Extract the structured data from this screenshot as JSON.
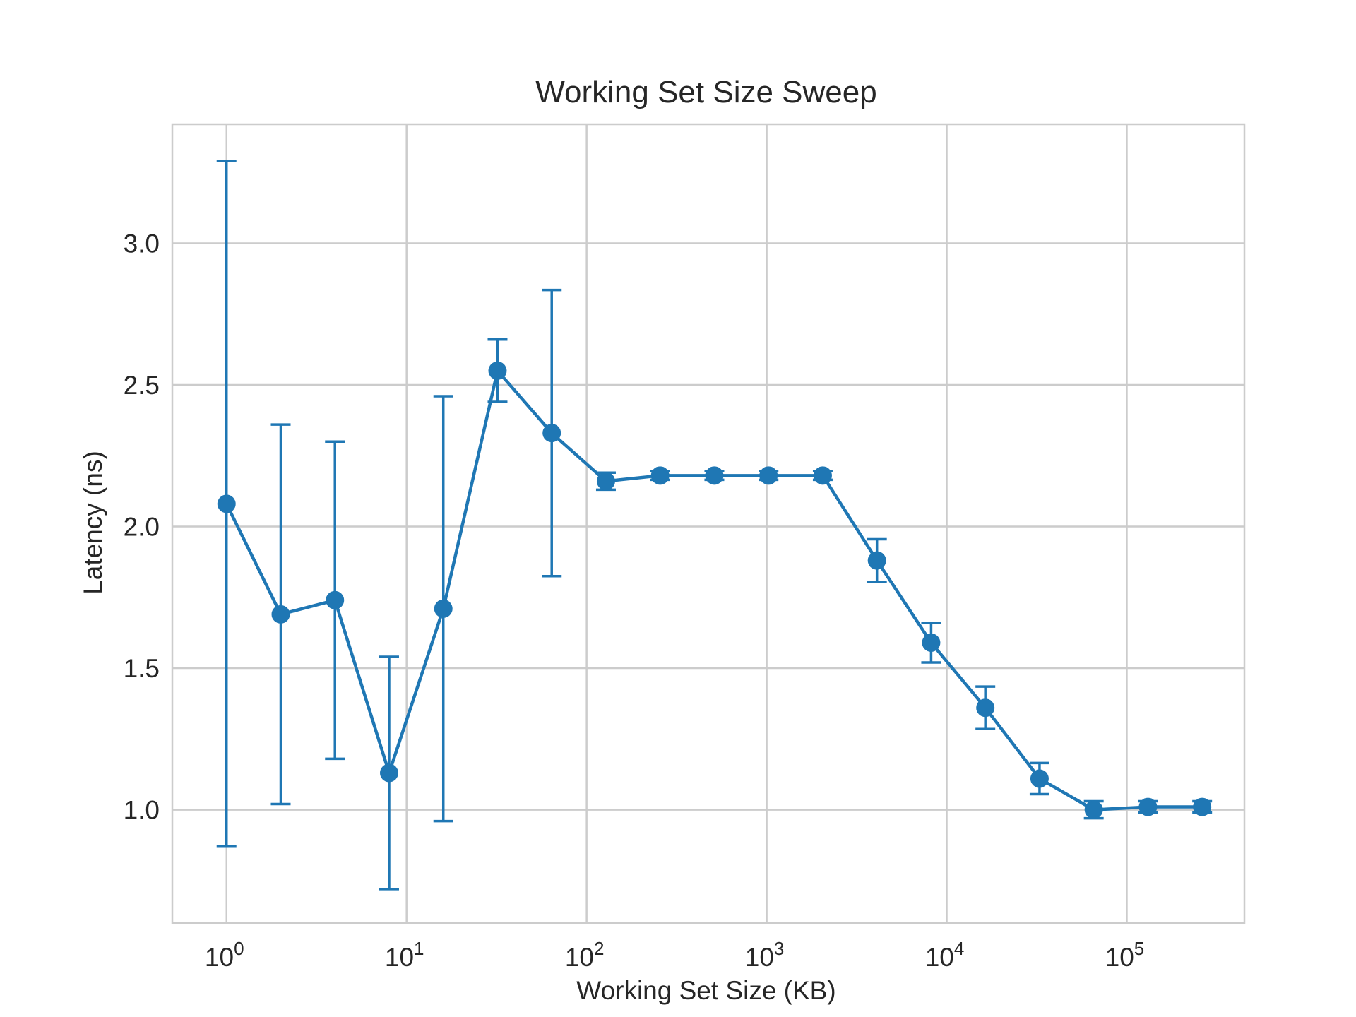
{
  "chart_data": {
    "type": "line",
    "title": "Working Set Size Sweep",
    "xlabel": "Working Set Size (KB)",
    "ylabel": "Latency (ns)",
    "x_scale": "log",
    "xlim": [
      0.5,
      450000
    ],
    "ylim": [
      0.6,
      3.42
    ],
    "grid": true,
    "x_ticks": [
      {
        "value": 1,
        "base": "10",
        "exp": "0"
      },
      {
        "value": 10,
        "base": "10",
        "exp": "1"
      },
      {
        "value": 100,
        "base": "10",
        "exp": "2"
      },
      {
        "value": 1000,
        "base": "10",
        "exp": "3"
      },
      {
        "value": 10000,
        "base": "10",
        "exp": "4"
      },
      {
        "value": 100000,
        "base": "10",
        "exp": "5"
      }
    ],
    "y_ticks": [
      {
        "value": 1.0,
        "label": "1.0"
      },
      {
        "value": 1.5,
        "label": "1.5"
      },
      {
        "value": 2.0,
        "label": "2.0"
      },
      {
        "value": 2.5,
        "label": "2.5"
      },
      {
        "value": 3.0,
        "label": "3.0"
      }
    ],
    "series": [
      {
        "color": "#1f77b4",
        "x": [
          1,
          2,
          4,
          8,
          16,
          32,
          64,
          128,
          256,
          512,
          1024,
          2048,
          4096,
          8192,
          16384,
          32768,
          65536,
          131072,
          262144
        ],
        "y": [
          2.08,
          1.69,
          1.74,
          1.13,
          1.71,
          2.55,
          2.33,
          2.16,
          2.18,
          2.18,
          2.18,
          2.18,
          1.88,
          1.59,
          1.36,
          1.11,
          1.0,
          1.01,
          1.01
        ],
        "yerr": [
          1.21,
          0.67,
          0.56,
          0.41,
          0.75,
          0.11,
          0.505,
          0.03,
          0.015,
          0.015,
          0.015,
          0.015,
          0.075,
          0.07,
          0.075,
          0.055,
          0.03,
          0.02,
          0.02
        ]
      }
    ]
  }
}
